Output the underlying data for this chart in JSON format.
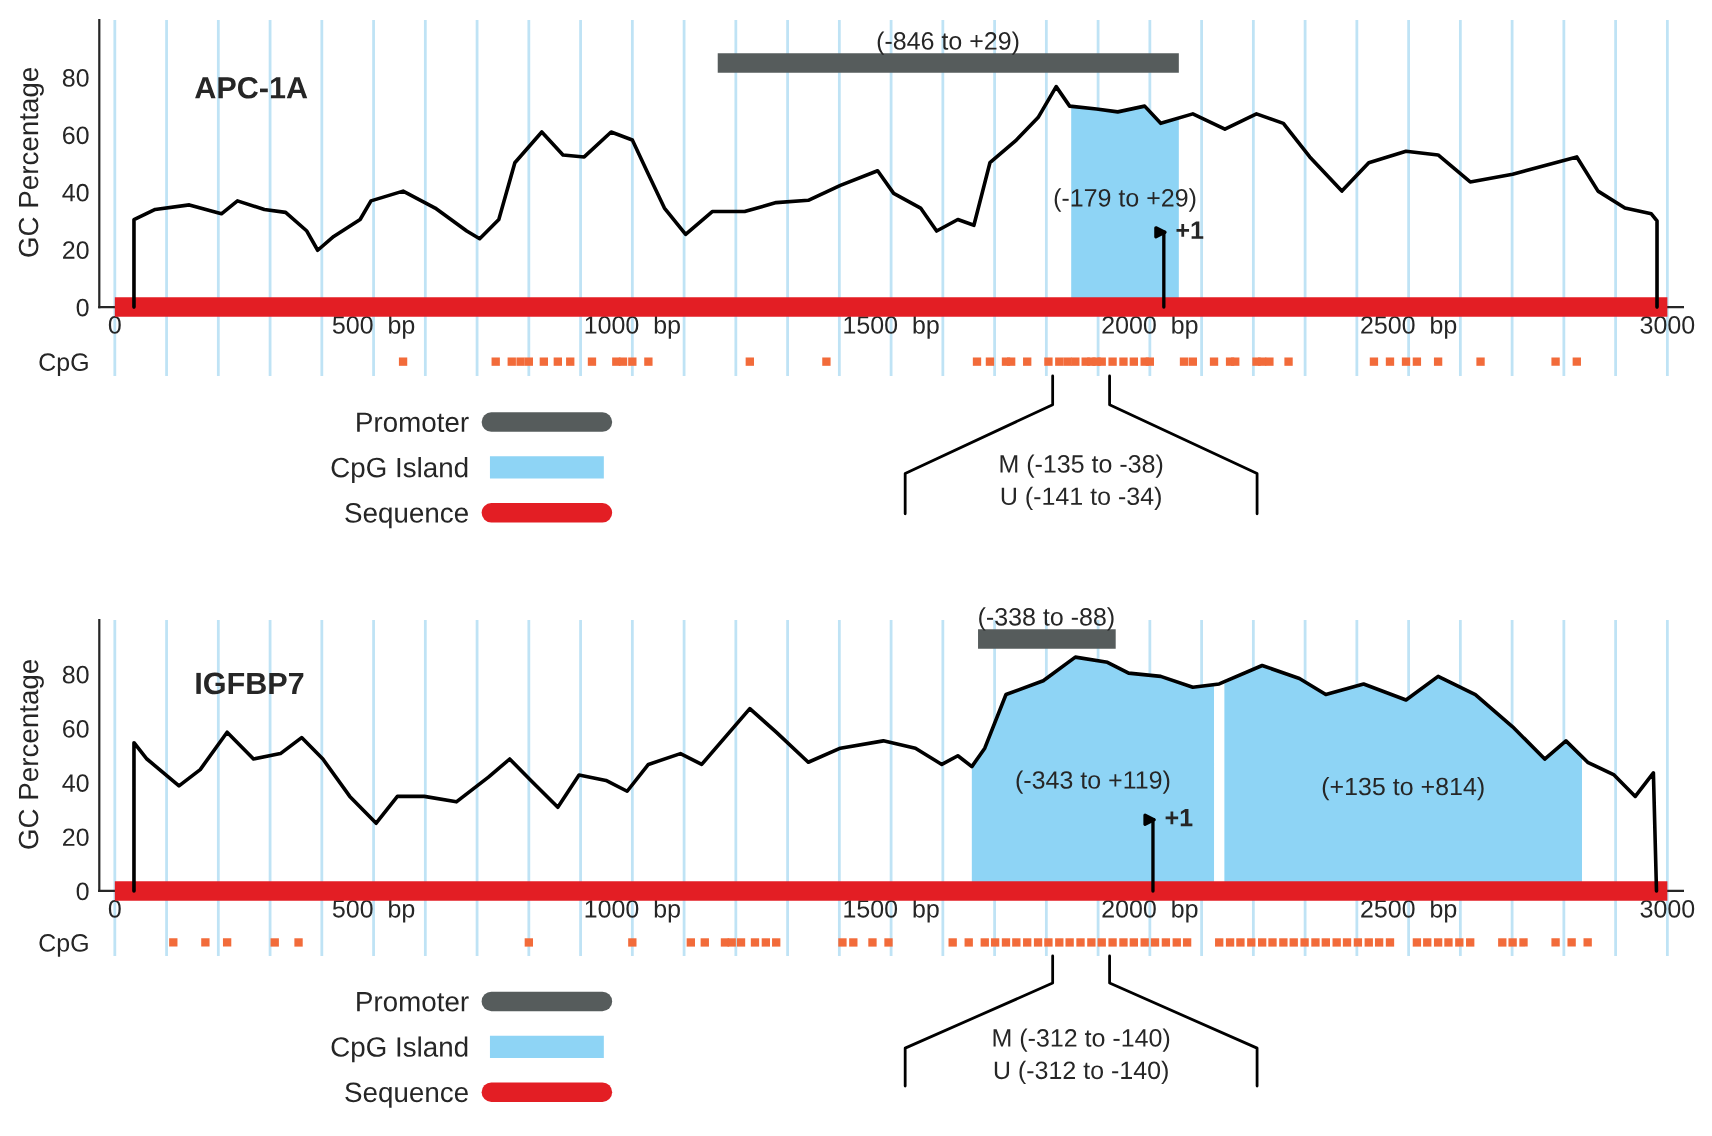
{
  "chart_data": [
    {
      "type": "line",
      "title": "APC-1A",
      "ylabel": "GC Percentage",
      "xlim": [
        -30,
        3030
      ],
      "ylim": [
        -24,
        100
      ],
      "xticks": [
        {
          "value": 0,
          "label": "0"
        },
        {
          "value": 100,
          "label": null
        },
        {
          "value": 200,
          "label": null
        },
        {
          "value": 300,
          "label": null
        },
        {
          "value": 400,
          "label": null
        },
        {
          "value": 500,
          "label": "500  bp"
        },
        {
          "value": 600,
          "label": null
        },
        {
          "value": 700,
          "label": null
        },
        {
          "value": 800,
          "label": null
        },
        {
          "value": 900,
          "label": null
        },
        {
          "value": 1000,
          "label": "1000  bp"
        },
        {
          "value": 1100,
          "label": null
        },
        {
          "value": 1200,
          "label": null
        },
        {
          "value": 1300,
          "label": null
        },
        {
          "value": 1400,
          "label": null
        },
        {
          "value": 1500,
          "label": "1500  bp"
        },
        {
          "value": 1600,
          "label": null
        },
        {
          "value": 1700,
          "label": null
        },
        {
          "value": 1800,
          "label": null
        },
        {
          "value": 1900,
          "label": null
        },
        {
          "value": 2000,
          "label": "2000  bp"
        },
        {
          "value": 2100,
          "label": null
        },
        {
          "value": 2200,
          "label": null
        },
        {
          "value": 2300,
          "label": null
        },
        {
          "value": 2400,
          "label": null
        },
        {
          "value": 2500,
          "label": "2500  bp"
        },
        {
          "value": 2600,
          "label": null
        },
        {
          "value": 2700,
          "label": null
        },
        {
          "value": 2800,
          "label": null
        },
        {
          "value": 2900,
          "label": null
        },
        {
          "value": 3000,
          "label": "3000"
        }
      ],
      "yticks": [
        {
          "value": -19,
          "label": "CpG"
        },
        0,
        20,
        40,
        60,
        80
      ],
      "grid": "x",
      "legend": "bottom",
      "series": [
        {
          "color": "#000000",
          "x": [
            37,
            37,
            78,
            144,
            206,
            237,
            289,
            330,
            371,
            392,
            423,
            474,
            495,
            557,
            619,
            680,
            705,
            742,
            773,
            825,
            866,
            907,
            959,
            1000,
            1031,
            1062,
            1103,
            1155,
            1217,
            1278,
            1340,
            1402,
            1474,
            1505,
            1557,
            1588,
            1629,
            1660,
            1691,
            1742,
            1784,
            1819,
            1845,
            1897,
            1938,
            1990,
            2021,
            2083,
            2145,
            2206,
            2258,
            2309,
            2371,
            2423,
            2495,
            2557,
            2619,
            2701,
            2825,
            2866,
            2918,
            2969,
            2980,
            2980
          ],
          "values": [
            0,
            30.5,
            34,
            35.6,
            32.5,
            37,
            34,
            33,
            26.5,
            19.8,
            24.6,
            30.5,
            37,
            40.4,
            34.5,
            26.5,
            23.8,
            30.5,
            50.3,
            61,
            53,
            52.3,
            61,
            58.2,
            46.3,
            34.5,
            25.3,
            33.3,
            33.3,
            36.4,
            37.2,
            42.4,
            47.5,
            39.6,
            34.5,
            26.5,
            30.5,
            28.5,
            50.3,
            58.2,
            66,
            76.8,
            70,
            69,
            68,
            70,
            64,
            67.3,
            62,
            67.3,
            64,
            52.3,
            40.4,
            50.3,
            54.3,
            53,
            43.6,
            46.3,
            52.3,
            40.4,
            34.5,
            32.5,
            30,
            0
          ]
        },
        {
          "type": "line",
          "name": "Promoter",
          "color": "#565c5c",
          "x": [
            1165,
            2056
          ],
          "values": [
            85,
            85
          ]
        },
        {
          "type": "area",
          "name": "CpG Island",
          "color": "#8ed4f5",
          "x": [
            1848,
            1897,
            1938,
            1990,
            2021,
            2056
          ],
          "values": [
            70,
            69,
            68,
            70,
            64,
            66
          ]
        },
        {
          "type": "line",
          "name": "Sequence",
          "color": "#e31e24",
          "x": [
            0,
            3000
          ],
          "values": [
            0,
            0
          ]
        },
        {
          "type": "scatter",
          "color": "#f26b3a",
          "x": [
            557,
            736,
            767,
            784,
            800,
            829,
            856,
            880,
            922,
            969,
            982,
            1000,
            1031,
            1227,
            1375,
            1666,
            1691,
            1722,
            1732,
            1763,
            1804,
            1825,
            1841,
            1856,
            1876,
            1887,
            1897,
            1907,
            1928,
            1949,
            1969,
            1990,
            2000,
            2066,
            2083,
            2124,
            2155,
            2165,
            2206,
            2217,
            2231,
            2268,
            2433,
            2464,
            2495,
            2516,
            2557,
            2639,
            2784,
            2825
          ],
          "values": [
            -19,
            -19,
            -19,
            -19,
            -19,
            -19,
            -19,
            -19,
            -19,
            -19,
            -19,
            -19,
            -19,
            -19,
            -19,
            -19,
            -19,
            -19,
            -19,
            -19,
            -19,
            -19,
            -19,
            -19,
            -19,
            -19,
            -19,
            -19,
            -19,
            -19,
            -19,
            -19,
            -19,
            -19,
            -19,
            -19,
            -19,
            -19,
            -19,
            -19,
            -19,
            -19,
            -19,
            -19,
            -19,
            -19,
            -19,
            -19,
            -19,
            -19
          ]
        }
      ],
      "annotations": [
        {
          "text": "(-846 to +29)",
          "x": 1610,
          "y": 85
        },
        {
          "text": "+1",
          "x": 2027,
          "y": 0
        },
        "(-179 to +29)",
        "M (-135 to -38)\nU (-141 to -34)"
      ]
    },
    {
      "type": "line",
      "title": "IGFBP7",
      "ylabel": "GC Percentage",
      "xlim": [
        -30,
        3030
      ],
      "ylim": [
        -24,
        100
      ],
      "xticks": [
        {
          "value": 0,
          "label": "0"
        },
        {
          "value": 100,
          "label": null
        },
        {
          "value": 200,
          "label": null
        },
        {
          "value": 300,
          "label": null
        },
        {
          "value": 400,
          "label": null
        },
        {
          "value": 500,
          "label": "500  bp"
        },
        {
          "value": 600,
          "label": null
        },
        {
          "value": 700,
          "label": null
        },
        {
          "value": 800,
          "label": null
        },
        {
          "value": 900,
          "label": null
        },
        {
          "value": 1000,
          "label": "1000  bp"
        },
        {
          "value": 1100,
          "label": null
        },
        {
          "value": 1200,
          "label": null
        },
        {
          "value": 1300,
          "label": null
        },
        {
          "value": 1400,
          "label": null
        },
        {
          "value": 1500,
          "label": "1500  bp"
        },
        {
          "value": 1600,
          "label": null
        },
        {
          "value": 1700,
          "label": null
        },
        {
          "value": 1800,
          "label": null
        },
        {
          "value": 1900,
          "label": null
        },
        {
          "value": 2000,
          "label": "2000  bp"
        },
        {
          "value": 2100,
          "label": null
        },
        {
          "value": 2200,
          "label": null
        },
        {
          "value": 2300,
          "label": null
        },
        {
          "value": 2400,
          "label": null
        },
        {
          "value": 2500,
          "label": "2500  bp"
        },
        {
          "value": 2600,
          "label": null
        },
        {
          "value": 2700,
          "label": null
        },
        {
          "value": 2800,
          "label": null
        },
        {
          "value": 2900,
          "label": null
        },
        {
          "value": 3000,
          "label": "3000"
        }
      ],
      "yticks": [
        {
          "value": -19,
          "label": "CpG"
        },
        0,
        20,
        40,
        60,
        80
      ],
      "grid": "x",
      "legend": "bottom",
      "series": [
        {
          "color": "#000000",
          "x": [
            37,
            37,
            62,
            124,
            165,
            217,
            268,
            320,
            361,
            402,
            454,
            505,
            546,
            598,
            660,
            722,
            763,
            804,
            856,
            897,
            949,
            990,
            1031,
            1093,
            1134,
            1227,
            1278,
            1340,
            1402,
            1485,
            1547,
            1598,
            1629,
            1656,
            1681,
            1722,
            1794,
            1856,
            1918,
            1959,
            2021,
            2083,
            2134,
            2217,
            2289,
            2340,
            2413,
            2495,
            2557,
            2629,
            2701,
            2763,
            2804,
            2846,
            2897,
            2938,
            2973,
            2979
          ],
          "values": [
            0,
            54.7,
            48.7,
            38.8,
            44.8,
            58.6,
            48.7,
            50.7,
            56.6,
            48.7,
            34.9,
            25,
            34.9,
            34.9,
            32.9,
            42,
            48.7,
            40.8,
            30.9,
            42.8,
            40.8,
            36.8,
            46.7,
            50.7,
            46.7,
            67.3,
            58.6,
            47.5,
            52.7,
            55.4,
            52.7,
            46.7,
            49.9,
            45.9,
            52.7,
            72.5,
            77.6,
            86.3,
            84.4,
            80.4,
            79.2,
            75.2,
            76.4,
            83.2,
            78.4,
            72.5,
            76.4,
            70.5,
            79.2,
            72.5,
            60.6,
            48.7,
            55.4,
            47.5,
            42.8,
            34.9,
            43.6,
            0
          ]
        },
        {
          "type": "line",
          "name": "Promoter",
          "color": "#565c5c",
          "x": [
            1668,
            1934
          ],
          "values": [
            93,
            93
          ]
        },
        {
          "type": "area",
          "name": "CpG Island",
          "color": "#8ed4f5",
          "x": [
            1656,
            1681,
            1722,
            1794,
            1856,
            1918,
            1959,
            2021,
            2083,
            2124,
            2134,
            2144,
            2217,
            2289,
            2340,
            2413,
            2495,
            2557,
            2629,
            2701,
            2763,
            2804,
            2835
          ],
          "values": [
            45.9,
            52.7,
            72.5,
            77.6,
            86.3,
            84.4,
            80.4,
            79.2,
            75.2,
            76,
            null,
            76.5,
            83.2,
            78.4,
            72.5,
            76.4,
            70.5,
            79.2,
            72.5,
            60.6,
            48.7,
            55.4,
            50
          ]
        },
        {
          "type": "line",
          "name": "Sequence",
          "color": "#e31e24",
          "x": [
            0,
            3000
          ],
          "values": [
            0,
            0
          ]
        },
        {
          "type": "scatter",
          "color": "#f26b3a",
          "x": [
            113,
            175,
            217,
            309,
            355,
            800,
            1000,
            1113,
            1140,
            1179,
            1192,
            1210,
            1237,
            1258,
            1278,
            1406,
            1427,
            1464,
            1495,
            1619,
            1650,
            1681,
            1701,
            1722,
            1742,
            1763,
            1784,
            1804,
            1825,
            1845,
            1866,
            1887,
            1907,
            1928,
            1949,
            1969,
            1990,
            2010,
            2031,
            2052,
            2072,
            2134,
            2155,
            2175,
            2196,
            2217,
            2237,
            2258,
            2278,
            2299,
            2320,
            2340,
            2361,
            2381,
            2402,
            2423,
            2443,
            2464,
            2516,
            2536,
            2557,
            2577,
            2598,
            2619,
            2681,
            2701,
            2722,
            2784,
            2815,
            2846
          ],
          "values": [
            -19,
            -19,
            -19,
            -19,
            -19,
            -19,
            -19,
            -19,
            -19,
            -19,
            -19,
            -19,
            -19,
            -19,
            -19,
            -19,
            -19,
            -19,
            -19,
            -19,
            -19,
            -19,
            -19,
            -19,
            -19,
            -19,
            -19,
            -19,
            -19,
            -19,
            -19,
            -19,
            -19,
            -19,
            -19,
            -19,
            -19,
            -19,
            -19,
            -19,
            -19,
            -19,
            -19,
            -19,
            -19,
            -19,
            -19,
            -19,
            -19,
            -19,
            -19,
            -19,
            -19,
            -19,
            -19,
            -19,
            -19,
            -19,
            -19,
            -19,
            -19,
            -19,
            -19,
            -19,
            -19,
            -19,
            -19,
            -19,
            -19,
            -19
          ]
        }
      ],
      "annotations": [
        {
          "text": "(-338 to -88)",
          "x": 1800,
          "y": 93
        },
        {
          "text": "+1",
          "x": 2006,
          "y": 0
        },
        "(-343 to +119)",
        "(+135 to +814)",
        "M (-312 to -140)\nU (-312 to -140)"
      ]
    }
  ]
}
